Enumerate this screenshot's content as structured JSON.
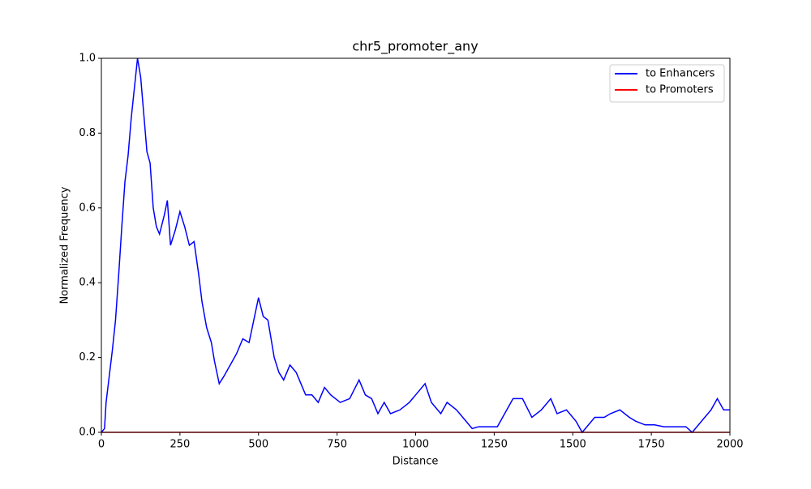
{
  "chart_data": {
    "type": "line",
    "title": "chr5_promoter_any",
    "x_label": "Distance",
    "y_label": "Normalized Frequency",
    "xlim": [
      0,
      2000
    ],
    "ylim": [
      0,
      1
    ],
    "xticks": [
      0,
      250,
      500,
      750,
      1000,
      1250,
      1500,
      1750,
      2000
    ],
    "yticks": [
      {
        "value": 0,
        "label": "0.0"
      },
      0.2,
      0.4,
      0.6,
      0.8,
      {
        "value": 1,
        "label": "1.0"
      }
    ],
    "legend": "upper right",
    "grid": false,
    "series": [
      {
        "name": "to Enhancers",
        "color": "#0000ff",
        "x": [
          0,
          10,
          15,
          25,
          35,
          45,
          55,
          65,
          75,
          85,
          95,
          105,
          115,
          125,
          135,
          145,
          155,
          165,
          175,
          185,
          200,
          210,
          220,
          235,
          250,
          265,
          280,
          295,
          310,
          320,
          335,
          350,
          360,
          375,
          390,
          410,
          430,
          450,
          470,
          485,
          500,
          515,
          530,
          550,
          565,
          580,
          600,
          620,
          635,
          650,
          670,
          690,
          710,
          730,
          760,
          790,
          820,
          840,
          860,
          880,
          900,
          920,
          950,
          980,
          1000,
          1030,
          1050,
          1080,
          1100,
          1130,
          1160,
          1180,
          1200,
          1230,
          1260,
          1290,
          1310,
          1340,
          1370,
          1400,
          1430,
          1450,
          1480,
          1510,
          1530,
          1550,
          1570,
          1600,
          1620,
          1650,
          1680,
          1700,
          1730,
          1760,
          1790,
          1830,
          1860,
          1880,
          1910,
          1940,
          1960,
          1980,
          2000
        ],
        "values": [
          0,
          0.01,
          0.08,
          0.15,
          0.22,
          0.3,
          0.42,
          0.55,
          0.67,
          0.74,
          0.84,
          0.92,
          1.0,
          0.95,
          0.85,
          0.75,
          0.72,
          0.6,
          0.55,
          0.53,
          0.58,
          0.62,
          0.5,
          0.54,
          0.59,
          0.55,
          0.5,
          0.51,
          0.42,
          0.35,
          0.28,
          0.24,
          0.19,
          0.13,
          0.15,
          0.18,
          0.21,
          0.25,
          0.24,
          0.3,
          0.36,
          0.31,
          0.3,
          0.2,
          0.16,
          0.14,
          0.18,
          0.16,
          0.13,
          0.1,
          0.1,
          0.08,
          0.12,
          0.1,
          0.08,
          0.09,
          0.14,
          0.1,
          0.09,
          0.05,
          0.08,
          0.05,
          0.06,
          0.08,
          0.1,
          0.13,
          0.08,
          0.05,
          0.08,
          0.06,
          0.03,
          0.01,
          0.015,
          0.015,
          0.015,
          0.06,
          0.09,
          0.09,
          0.04,
          0.06,
          0.09,
          0.05,
          0.06,
          0.03,
          0.0,
          0.02,
          0.04,
          0.04,
          0.05,
          0.06,
          0.04,
          0.03,
          0.02,
          0.02,
          0.015,
          0.015,
          0.015,
          0.0,
          0.03,
          0.06,
          0.09,
          0.06,
          0.06
        ]
      },
      {
        "name": "to Promoters",
        "color": "#ff0000",
        "x": [
          0,
          2000
        ],
        "values": [
          0,
          0
        ]
      }
    ]
  }
}
